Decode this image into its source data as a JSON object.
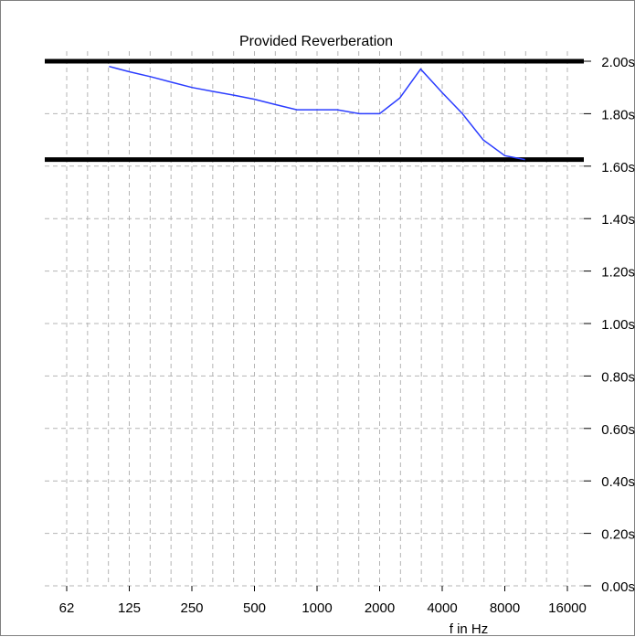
{
  "chart_data": {
    "type": "line",
    "title": "Provided Reverberation",
    "xlabel": "f in Hz",
    "ylabel": "",
    "x_scale": "log2",
    "x_ticks": [
      "62",
      "125",
      "250",
      "500",
      "1000",
      "2000",
      "4000",
      "8000",
      "16000"
    ],
    "y_ticks": [
      "0.00s",
      "0.20s",
      "0.40s",
      "0.60s",
      "0.80s",
      "1.00s",
      "1.20s",
      "1.40s",
      "1.60s",
      "1.80s",
      "2.00s"
    ],
    "ylim": [
      0,
      2.0
    ],
    "grid": true,
    "series": [
      {
        "color": "#2a3cff",
        "x": [
          100,
          125,
          160,
          200,
          250,
          315,
          400,
          500,
          630,
          800,
          1000,
          1250,
          1600,
          2000,
          2500,
          3150,
          4000,
          5000,
          6300,
          8000,
          10000
        ],
        "y": [
          1.98,
          1.96,
          1.94,
          1.92,
          1.9,
          1.885,
          1.87,
          1.855,
          1.835,
          1.815,
          1.815,
          1.815,
          1.8,
          1.8,
          1.86,
          1.97,
          1.88,
          1.8,
          1.7,
          1.64,
          1.625
        ]
      }
    ],
    "reference_lines": [
      {
        "y": 2.0,
        "color": "#000000"
      },
      {
        "y": 1.625,
        "color": "#000000"
      }
    ]
  }
}
